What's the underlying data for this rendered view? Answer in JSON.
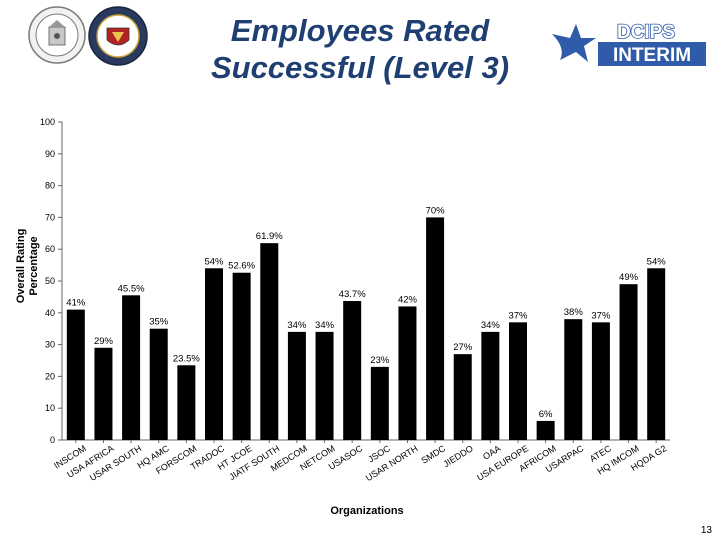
{
  "header": {
    "title_line1": "Employees Rated",
    "title_line2": "Successful (Level 3)",
    "logo_top": "DCIPS",
    "logo_bottom": "INTERIM"
  },
  "colors": {
    "bar": "#000000",
    "title": "#1f3f73",
    "logo": "#2f5ba8"
  },
  "chart_data": {
    "type": "bar",
    "title": "",
    "xlabel": "Organizations",
    "ylabel_line1": "Overall Rating",
    "ylabel_line2": "Percentage",
    "ylim": [
      0,
      100
    ],
    "yticks": [
      0,
      10,
      20,
      30,
      40,
      50,
      60,
      70,
      80,
      90,
      100
    ],
    "grid": false,
    "categories": [
      "INSCOM",
      "USA AFRICA",
      "USAR SOUTH",
      "HQ AMC",
      "FORSCOM",
      "TRADOC",
      "HT JCOE",
      "JIATF SOUTH",
      "MEDCOM",
      "NETCOM",
      "USASOC",
      "JSOC",
      "USAR NORTH",
      "SMDC",
      "JIEDDO",
      "OAA",
      "USA EUROPE",
      "AFRICOM",
      "USARPAC",
      "ATEC",
      "HQ IMCOM",
      "HQDA G2"
    ],
    "values": [
      41,
      29,
      45.5,
      35,
      23.5,
      54,
      52.6,
      61.9,
      34,
      34,
      43.7,
      23,
      42,
      70,
      27,
      34,
      37,
      6,
      38,
      37,
      49,
      54
    ],
    "labels": [
      "41%",
      "29%",
      "45.5%",
      "35%",
      "23.5%",
      "54%",
      "52.6%",
      "61.9%",
      "34%",
      "34%",
      "43.7%",
      "23%",
      "42%",
      "70%",
      "27%",
      "34%",
      "37%",
      "6%",
      "38%",
      "37%",
      "49%",
      "54%"
    ]
  },
  "footer": {
    "page_number": "13"
  }
}
